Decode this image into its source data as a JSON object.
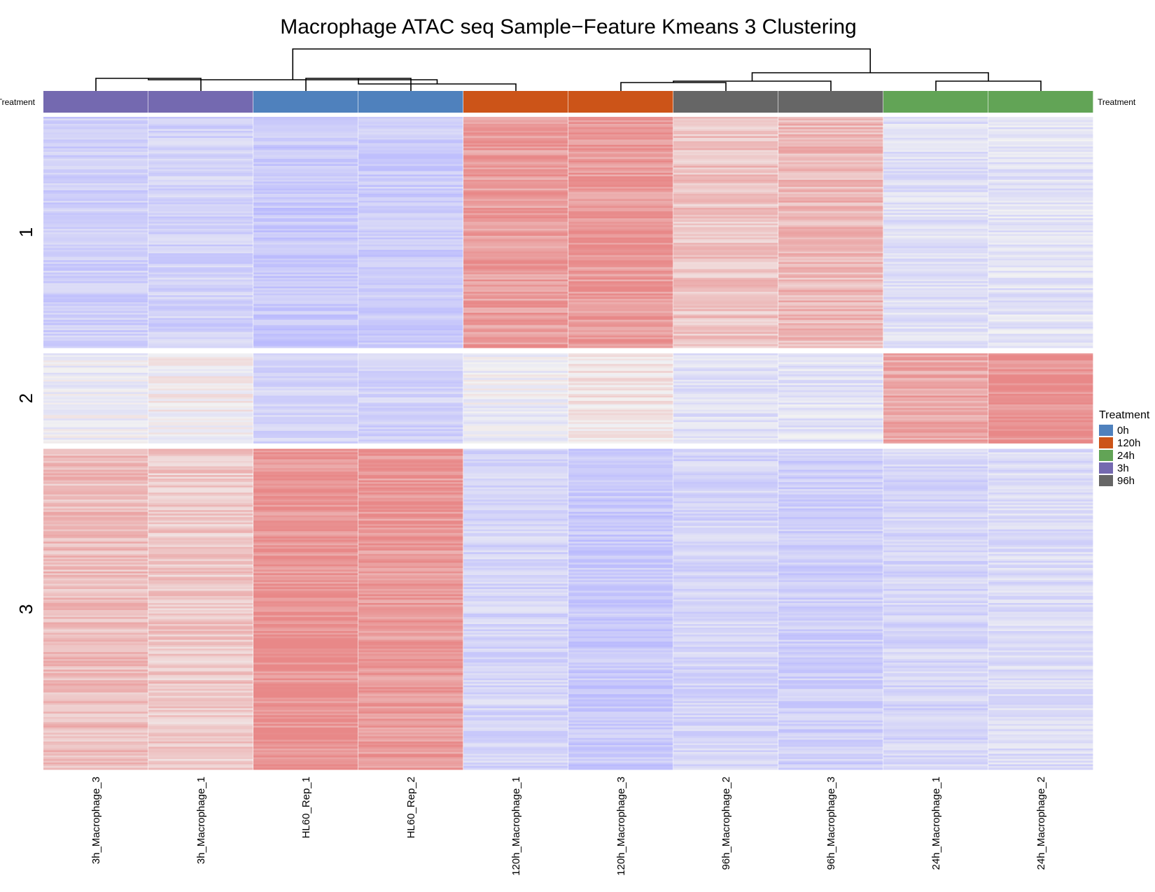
{
  "chart_data": {
    "type": "heatmap",
    "title": "Macrophage ATAC seq Sample−Feature Kmeans 3 Clustering",
    "annotation_label": "Treatment",
    "columns": [
      {
        "name": "3h_Macrophage_3",
        "treatment": "3h"
      },
      {
        "name": "3h_Macrophage_1",
        "treatment": "3h"
      },
      {
        "name": "HL60_Rep_1",
        "treatment": "0h"
      },
      {
        "name": "HL60_Rep_2",
        "treatment": "0h"
      },
      {
        "name": "120h_Macrophage_1",
        "treatment": "120h"
      },
      {
        "name": "120h_Macrophage_3",
        "treatment": "120h"
      },
      {
        "name": "96h_Macrophage_2",
        "treatment": "96h"
      },
      {
        "name": "96h_Macrophage_3",
        "treatment": "96h"
      },
      {
        "name": "24h_Macrophage_1",
        "treatment": "24h"
      },
      {
        "name": "24h_Macrophage_2",
        "treatment": "24h"
      }
    ],
    "row_clusters": [
      {
        "label": "1",
        "relative_size": 0.36,
        "values": [
          -0.55,
          -0.5,
          -0.65,
          -0.6,
          0.8,
          0.85,
          0.45,
          0.55,
          -0.3,
          -0.25
        ]
      },
      {
        "label": "2",
        "relative_size": 0.14,
        "values": [
          -0.1,
          0.0,
          -0.45,
          -0.5,
          -0.1,
          0.1,
          -0.3,
          -0.25,
          0.7,
          0.95
        ]
      },
      {
        "label": "3",
        "relative_size": 0.5,
        "values": [
          0.5,
          0.4,
          0.9,
          0.85,
          -0.45,
          -0.65,
          -0.45,
          -0.55,
          -0.45,
          -0.35
        ]
      }
    ],
    "color_scale": {
      "low": "#b3b3ff",
      "mid": "#f2f2f2",
      "high": "#e88888"
    },
    "legend": {
      "title": "Treatment",
      "position": "right",
      "items": [
        {
          "label": "0h",
          "color": "#4f81bd"
        },
        {
          "label": "120h",
          "color": "#cc5418"
        },
        {
          "label": "24h",
          "color": "#62a456"
        },
        {
          "label": "3h",
          "color": "#7469b0"
        },
        {
          "label": "96h",
          "color": "#666666"
        }
      ]
    },
    "dendrogram_merges": [
      [
        0,
        1
      ],
      [
        2,
        3
      ],
      [
        -2,
        4
      ],
      [
        5,
        6
      ],
      [
        -4,
        7
      ],
      [
        8,
        9
      ],
      [
        -1,
        -3
      ],
      [
        -5,
        -6
      ],
      [
        -7,
        -8
      ]
    ]
  }
}
